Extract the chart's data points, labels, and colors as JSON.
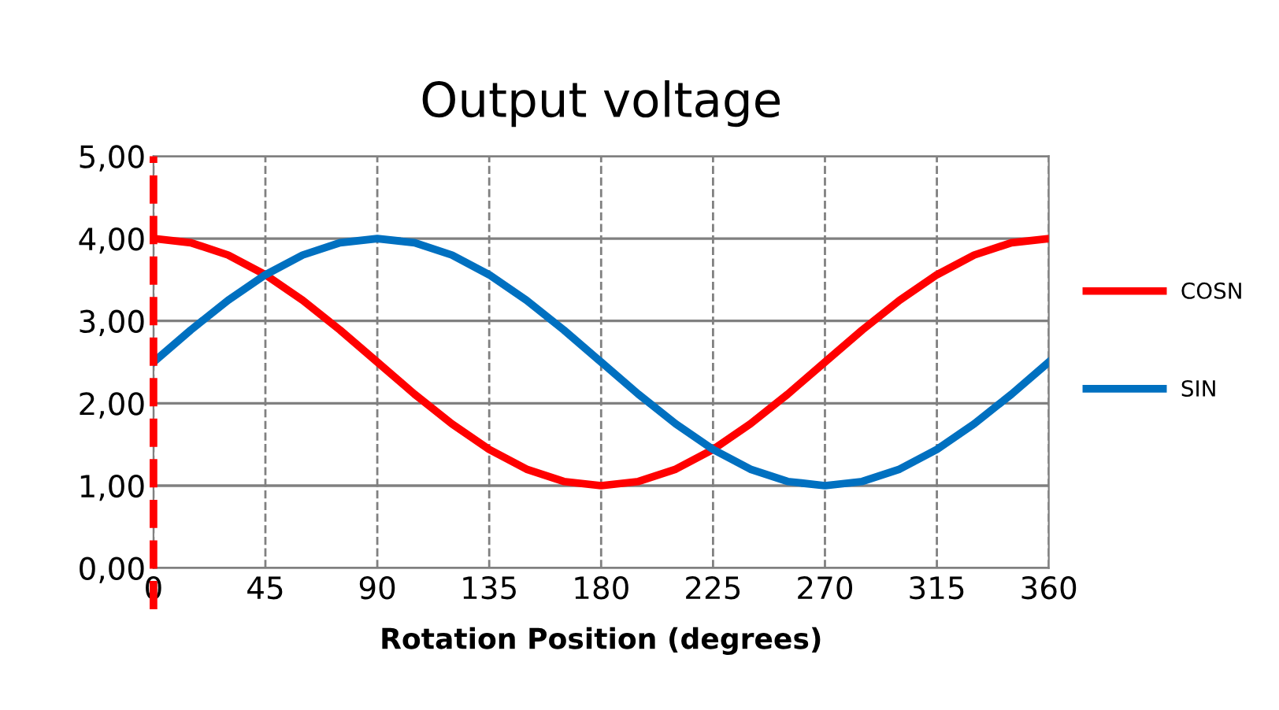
{
  "chart_data": {
    "type": "line",
    "title": "Output voltage",
    "xlabel": "Rotation Position (degrees)",
    "x": [
      0,
      15,
      30,
      45,
      60,
      75,
      90,
      105,
      120,
      135,
      150,
      165,
      180,
      195,
      210,
      225,
      240,
      255,
      270,
      285,
      300,
      315,
      330,
      345,
      360
    ],
    "series": [
      {
        "name": "COSN",
        "color": "#ff0000",
        "values": [
          4.0,
          3.95,
          3.8,
          3.56,
          3.25,
          2.89,
          2.5,
          2.11,
          1.75,
          1.44,
          1.2,
          1.05,
          1.0,
          1.05,
          1.2,
          1.44,
          1.75,
          2.11,
          2.5,
          2.89,
          3.25,
          3.56,
          3.8,
          3.95,
          4.0
        ]
      },
      {
        "name": "SIN",
        "color": "#0070c0",
        "values": [
          2.5,
          2.89,
          3.25,
          3.56,
          3.8,
          3.95,
          4.0,
          3.95,
          3.8,
          3.56,
          3.25,
          2.89,
          2.5,
          2.11,
          1.75,
          1.44,
          1.2,
          1.05,
          1.0,
          1.05,
          1.2,
          1.44,
          1.75,
          2.11,
          2.5
        ]
      }
    ],
    "xlim": [
      0,
      360
    ],
    "xticks": [
      0,
      45,
      90,
      135,
      180,
      225,
      270,
      315,
      360
    ],
    "ylim": [
      0,
      5
    ],
    "yticks": [
      {
        "value": 0,
        "label": "0,00"
      },
      {
        "value": 1,
        "label": "1,00"
      },
      {
        "value": 2,
        "label": "2,00"
      },
      {
        "value": 3,
        "label": "3,00"
      },
      {
        "value": 4,
        "label": "4,00"
      },
      {
        "value": 5,
        "label": "5,00"
      }
    ],
    "ref_lines": [
      {
        "axis": "x",
        "value": 0,
        "label": null,
        "color": "#ff0000",
        "line_style": "dashed"
      }
    ],
    "grid": true,
    "legend": "right",
    "marker": "none",
    "line_style": "solid"
  }
}
